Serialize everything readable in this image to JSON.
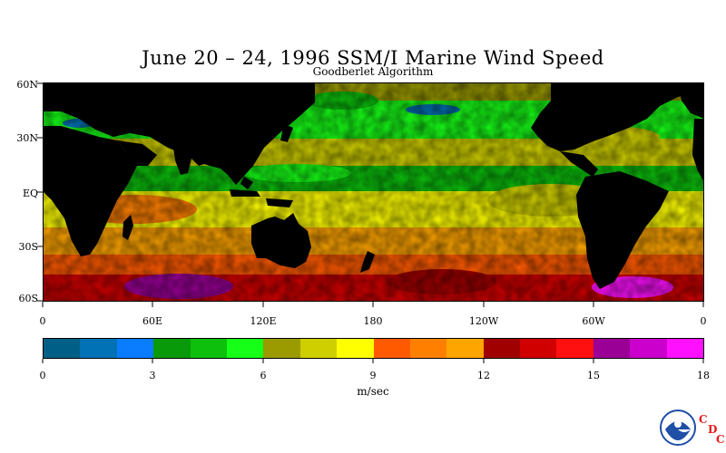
{
  "title": "June 20 – 24, 1996 SSM/I Marine Wind Speed",
  "subtitle": "Goodberlet Algorithm",
  "map": {
    "latitude_labels": [
      "60N",
      "30N",
      "EQ",
      "30S",
      "60S"
    ],
    "longitude_labels": [
      "0",
      "60E",
      "120E",
      "180",
      "120W",
      "60W",
      "0"
    ],
    "land_color": "#000000"
  },
  "colorbar": {
    "colors": [
      "#005f86",
      "#0072b5",
      "#0a7dff",
      "#089a08",
      "#0cc00c",
      "#16ff16",
      "#9b9b00",
      "#cfcf00",
      "#ffff00",
      "#ff5a00",
      "#ff8000",
      "#ffa500",
      "#a00000",
      "#d00000",
      "#ff1010",
      "#9a0096",
      "#cc00cc",
      "#ff10ff"
    ],
    "tick_labels": [
      "0",
      "3",
      "6",
      "9",
      "12",
      "15",
      "18"
    ],
    "unit_label": "m/sec"
  },
  "logo": {
    "name": "NOAA",
    "letters": [
      "C",
      "D",
      "C"
    ],
    "ring_color": "#1f4fa6",
    "letter_color": "#e41b1b"
  }
}
